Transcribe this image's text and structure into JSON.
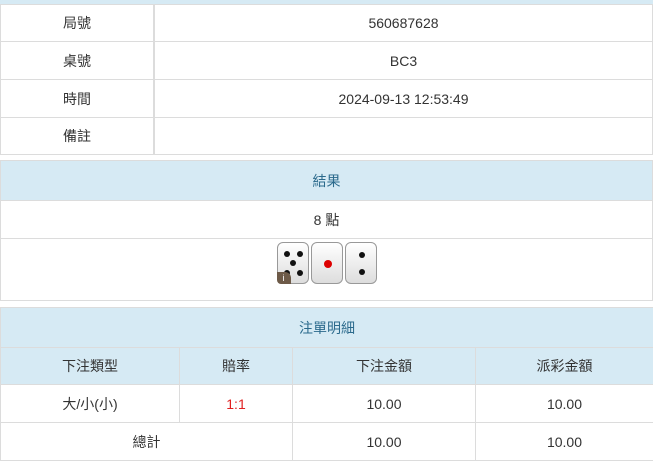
{
  "info": [
    {
      "label": "局號",
      "value": "560687628"
    },
    {
      "label": "桌號",
      "value": "BC3"
    },
    {
      "label": "時間",
      "value": "2024-09-13 12:53:49"
    },
    {
      "label": "備註",
      "value": ""
    }
  ],
  "result": {
    "title": "結果",
    "points": "8 點",
    "dice": [
      5,
      1,
      2
    ],
    "info_badge": "i"
  },
  "bets": {
    "title": "注單明細",
    "headers": [
      "下注類型",
      "賠率",
      "下注金額",
      "派彩金額"
    ],
    "rows": [
      {
        "type": "大/小(小)",
        "odds": "1:1",
        "amount": "10.00",
        "payout": "10.00"
      }
    ],
    "total": {
      "label": "總計",
      "amount": "10.00",
      "payout": "10.00"
    }
  },
  "colors": {
    "header_bg": "#d6eaf4",
    "header_text": "#2b6a8c",
    "odds": "#e02020"
  }
}
